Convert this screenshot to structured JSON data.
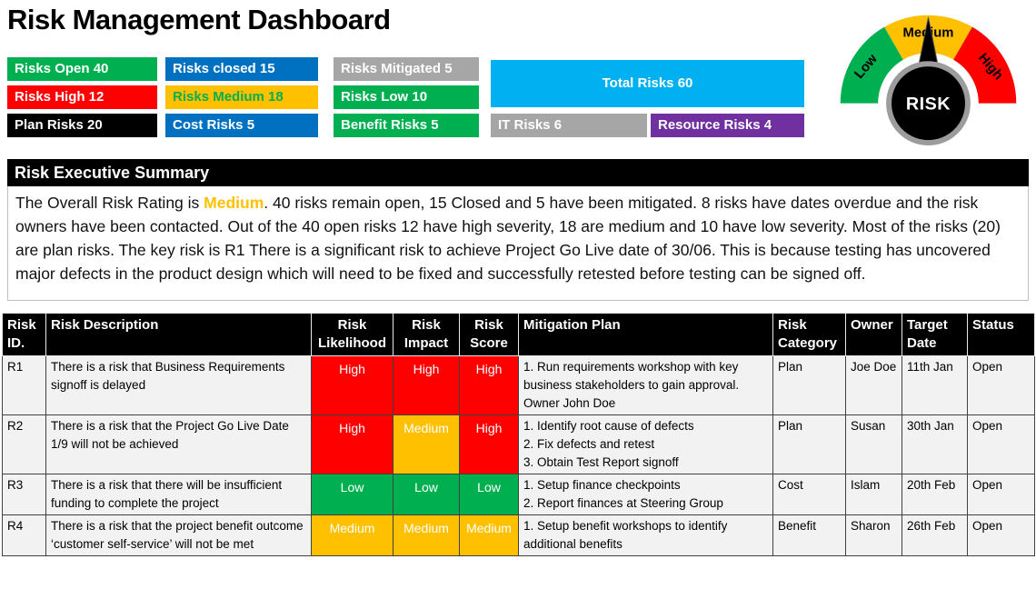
{
  "title": "Risk Management Dashboard",
  "gauge": {
    "labels": {
      "low": "Low",
      "medium": "Medium",
      "high": "High"
    },
    "center_label": "RISK",
    "colors": {
      "low": "#00B050",
      "medium": "#FFC000",
      "high": "#FF0000"
    }
  },
  "badges": [
    {
      "id": "open",
      "label": "Risks Open 40",
      "bg": "#00B050",
      "fg": "#FFFFFF"
    },
    {
      "id": "closed",
      "label": "Risks closed 15",
      "bg": "#0070C0",
      "fg": "#FFFFFF"
    },
    {
      "id": "mitigated",
      "label": "Risks Mitigated 5",
      "bg": "#A6A6A6",
      "fg": "#FFFFFF"
    },
    {
      "id": "total",
      "label": "Total Risks 60",
      "bg": "#00B0F0",
      "fg": "#FFFFFF"
    },
    {
      "id": "high",
      "label": "Risks High 12",
      "bg": "#FF0000",
      "fg": "#FFFFFF"
    },
    {
      "id": "medium",
      "label": "Risks Medium 18",
      "bg": "#FFC000",
      "fg": "#00B050"
    },
    {
      "id": "low",
      "label": "Risks Low 10",
      "bg": "#00B050",
      "fg": "#FFFFFF"
    },
    {
      "id": "plan",
      "label": "Plan Risks 20",
      "bg": "#000000",
      "fg": "#FFFFFF"
    },
    {
      "id": "cost",
      "label": "Cost Risks 5",
      "bg": "#0070C0",
      "fg": "#FFFFFF"
    },
    {
      "id": "benefit",
      "label": "Benefit Risks 5",
      "bg": "#00B050",
      "fg": "#FFFFFF"
    },
    {
      "id": "it",
      "label": "IT Risks 6",
      "bg": "#A6A6A6",
      "fg": "#FFFFFF"
    },
    {
      "id": "resource",
      "label": "Resource Risks 4",
      "bg": "#7030A0",
      "fg": "#FFFFFF"
    }
  ],
  "summary": {
    "header": "Risk Executive Summary",
    "text_before": "The Overall Risk Rating is ",
    "highlight": "Medium",
    "text_after": ". 40 risks remain open, 15 Closed and 5 have been mitigated. 8 risks have dates overdue and the risk owners have been contacted. Out of the 40 open risks 12 have high severity, 18 are medium and 10 have low severity. Most of the risks (20) are plan risks. The key risk is R1 There is a significant risk to achieve Project Go Live date of 30/06. This is because testing has uncovered major defects in the product design which will need to be fixed and successfully retested before testing can be signed off."
  },
  "table": {
    "headers": [
      "Risk\nID.",
      "Risk Description",
      "Risk\nLikelihood",
      "Risk\nImpact",
      "Risk\nScore",
      "Mitigation Plan",
      "Risk\nCategory",
      "Owner",
      "Target\nDate",
      "Status"
    ],
    "level_colors": {
      "High": "#FF0000",
      "Medium": "#FFC000",
      "Low": "#00B050"
    },
    "rows": [
      {
        "id": "R1",
        "description": "There is a risk that Business Requirements signoff is delayed",
        "likelihood": "High",
        "impact": "High",
        "score": "High",
        "mitigation": "1. Run requirements workshop with key business stakeholders to gain approval. Owner John Doe",
        "category": "Plan",
        "owner": "Joe Doe",
        "target": "11th Jan",
        "status": "Open"
      },
      {
        "id": "R2",
        "description": "There is a risk that the Project Go Live Date 1/9 will not be achieved",
        "likelihood": "High",
        "impact": "Medium",
        "score": "High",
        "mitigation": "1. Identify root cause of defects\n2. Fix defects and retest\n3. Obtain Test Report signoff",
        "category": "Plan",
        "owner": "Susan",
        "target": "30th Jan",
        "status": "Open"
      },
      {
        "id": "R3",
        "description": "There is a risk that there will be insufficient funding to complete the project",
        "likelihood": "Low",
        "impact": "Low",
        "score": "Low",
        "mitigation": "1. Setup finance checkpoints\n2. Report finances at Steering Group",
        "category": "Cost",
        "owner": "Islam",
        "target": "20th Feb",
        "status": "Open"
      },
      {
        "id": "R4",
        "description": "There is a risk that the project benefit outcome ‘customer self-service’ will not be met",
        "likelihood": "Medium",
        "impact": "Medium",
        "score": "Medium",
        "mitigation": "1. Setup benefit workshops to identify additional benefits",
        "category": "Benefit",
        "owner": "Sharon",
        "target": "26th Feb",
        "status": "Open"
      }
    ]
  },
  "chart_data": [
    {
      "type": "pie",
      "title": "RISK gauge (semicircular, needle points to Medium)",
      "categories": [
        "Low",
        "Medium",
        "High"
      ],
      "values": [
        1,
        1,
        1
      ],
      "annotations": [
        "Current overall rating: Medium"
      ],
      "legend_position": "on-segments"
    },
    {
      "type": "table",
      "title": "Risk KPI counts",
      "categories": [
        "Risks Open",
        "Risks closed",
        "Risks Mitigated",
        "Total Risks",
        "Risks High",
        "Risks Medium",
        "Risks Low",
        "Plan Risks",
        "Cost Risks",
        "Benefit Risks",
        "IT Risks",
        "Resource Risks"
      ],
      "values": [
        40,
        15,
        5,
        60,
        12,
        18,
        10,
        20,
        5,
        5,
        6,
        4
      ]
    }
  ]
}
